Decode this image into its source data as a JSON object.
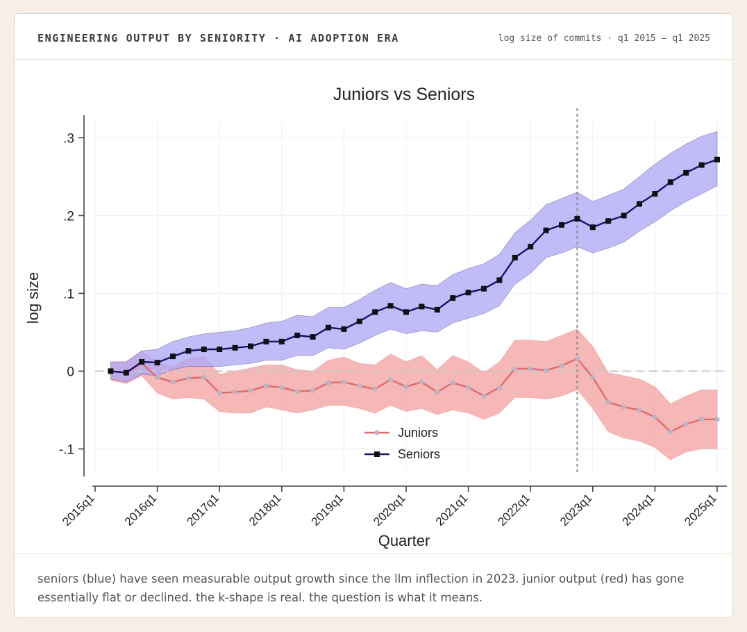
{
  "card": {
    "title": "ENGINEERING OUTPUT BY SENIORITY · AI ADOPTION ERA",
    "meta": "log size of commits · q1 2015 – q1 2025",
    "caption": "seniors (blue) have seen measurable output growth since the llm inflection in 2023. junior output (red) has gone essentially flat or declined. the k-shape is real. the question is what it means."
  },
  "chart_data": {
    "type": "line",
    "title": "Juniors vs Seniors",
    "xlabel": "Quarter",
    "ylabel": "log size",
    "xlim": [
      0,
      40
    ],
    "ylim": [
      -0.13,
      0.32
    ],
    "x_ticks": [
      {
        "x": 0,
        "label": "2015q1"
      },
      {
        "x": 4,
        "label": "2016q1"
      },
      {
        "x": 8,
        "label": "2017q1"
      },
      {
        "x": 12,
        "label": "2018q1"
      },
      {
        "x": 16,
        "label": "2019q1"
      },
      {
        "x": 20,
        "label": "2020q1"
      },
      {
        "x": 24,
        "label": "2021q1"
      },
      {
        "x": 28,
        "label": "2022q1"
      },
      {
        "x": 32,
        "label": "2023q1"
      },
      {
        "x": 36,
        "label": "2024q1"
      },
      {
        "x": 40,
        "label": "2025q1"
      }
    ],
    "y_ticks": [
      {
        "y": -0.1,
        "label": "-.1"
      },
      {
        "y": 0,
        "label": "0"
      },
      {
        "y": 0.1,
        "label": ".1"
      },
      {
        "y": 0.2,
        "label": ".2"
      },
      {
        "y": 0.3,
        "label": ".3"
      }
    ],
    "x": [
      1,
      2,
      3,
      4,
      5,
      6,
      7,
      8,
      9,
      10,
      11,
      12,
      13,
      14,
      15,
      16,
      17,
      18,
      19,
      20,
      21,
      22,
      23,
      24,
      25,
      26,
      27,
      28,
      29,
      30,
      31,
      32,
      33,
      34,
      35,
      36,
      37,
      38,
      39,
      40
    ],
    "vertical_reference_x": 31,
    "horizontal_reference_y": 0,
    "grid": true,
    "legend_position": "bottom-center",
    "series": [
      {
        "name": "Juniors",
        "color": "#e26a6a",
        "marker_color": "#b6b6c8",
        "band_color": "#f4a3a3",
        "values": [
          0,
          -0.002,
          0.01,
          -0.008,
          -0.014,
          -0.009,
          -0.008,
          -0.028,
          -0.027,
          -0.025,
          -0.019,
          -0.021,
          -0.026,
          -0.025,
          -0.015,
          -0.014,
          -0.019,
          -0.023,
          -0.011,
          -0.02,
          -0.014,
          -0.027,
          -0.015,
          -0.021,
          -0.032,
          -0.021,
          0.003,
          0.003,
          0.001,
          0.007,
          0.016,
          -0.008,
          -0.04,
          -0.046,
          -0.05,
          -0.059,
          -0.078,
          -0.068,
          -0.062,
          -0.062
        ],
        "lower": [
          -0.012,
          -0.016,
          -0.006,
          -0.028,
          -0.036,
          -0.034,
          -0.036,
          -0.052,
          -0.054,
          -0.054,
          -0.046,
          -0.05,
          -0.054,
          -0.05,
          -0.044,
          -0.044,
          -0.048,
          -0.054,
          -0.044,
          -0.052,
          -0.048,
          -0.056,
          -0.05,
          -0.054,
          -0.062,
          -0.054,
          -0.034,
          -0.034,
          -0.036,
          -0.032,
          -0.024,
          -0.048,
          -0.078,
          -0.086,
          -0.09,
          -0.098,
          -0.114,
          -0.104,
          -0.1,
          -0.1
        ],
        "upper": [
          0.012,
          0.012,
          0.026,
          0.012,
          0.006,
          0.016,
          0.02,
          -0.004,
          0,
          0.004,
          0.008,
          0.008,
          0.002,
          0,
          0.014,
          0.018,
          0.01,
          0.008,
          0.022,
          0.012,
          0.02,
          0.002,
          0.02,
          0.012,
          -0.002,
          0.012,
          0.04,
          0.04,
          0.038,
          0.046,
          0.054,
          0.032,
          -0.002,
          -0.006,
          -0.01,
          -0.02,
          -0.042,
          -0.032,
          -0.024,
          -0.024
        ]
      },
      {
        "name": "Seniors",
        "color": "#1a1070",
        "marker_color": "#111111",
        "band_color": "#b0a9f5",
        "values": [
          0,
          -0.002,
          0.012,
          0.011,
          0.019,
          0.026,
          0.028,
          0.028,
          0.03,
          0.032,
          0.038,
          0.038,
          0.046,
          0.044,
          0.056,
          0.054,
          0.064,
          0.076,
          0.084,
          0.076,
          0.083,
          0.079,
          0.094,
          0.101,
          0.106,
          0.117,
          0.146,
          0.16,
          0.181,
          0.188,
          0.196,
          0.185,
          0.193,
          0.2,
          0.215,
          0.228,
          0.243,
          0.255,
          0.265,
          0.272
        ],
        "lower": [
          -0.01,
          -0.014,
          -0.004,
          -0.006,
          0.002,
          0.006,
          0.006,
          0.006,
          0.008,
          0.01,
          0.014,
          0.014,
          0.02,
          0.02,
          0.03,
          0.028,
          0.036,
          0.046,
          0.054,
          0.048,
          0.052,
          0.05,
          0.062,
          0.068,
          0.074,
          0.084,
          0.112,
          0.126,
          0.146,
          0.152,
          0.16,
          0.152,
          0.158,
          0.166,
          0.18,
          0.192,
          0.206,
          0.218,
          0.228,
          0.238
        ],
        "upper": [
          0.012,
          0.012,
          0.026,
          0.028,
          0.038,
          0.044,
          0.048,
          0.05,
          0.052,
          0.056,
          0.062,
          0.064,
          0.072,
          0.07,
          0.082,
          0.082,
          0.092,
          0.104,
          0.114,
          0.106,
          0.112,
          0.11,
          0.124,
          0.132,
          0.138,
          0.15,
          0.178,
          0.194,
          0.214,
          0.222,
          0.23,
          0.218,
          0.226,
          0.234,
          0.25,
          0.266,
          0.28,
          0.292,
          0.302,
          0.308
        ]
      }
    ]
  }
}
